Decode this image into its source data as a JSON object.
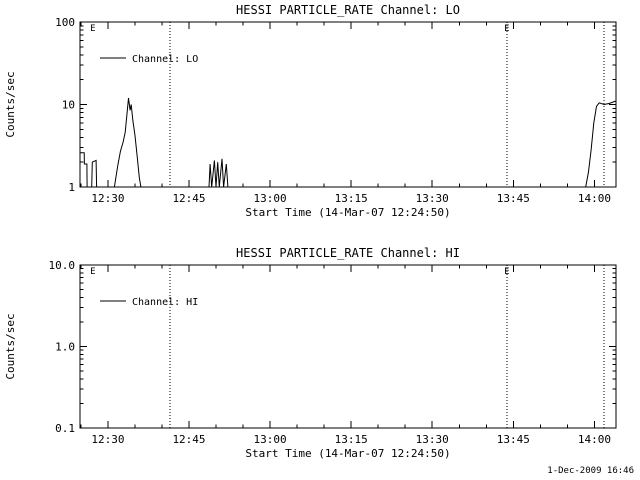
{
  "page": {
    "background": "#ffffff",
    "foreground": "#000000",
    "timestamp": "1-Dec-2009 16:46"
  },
  "chart_data": [
    {
      "type": "line",
      "title": "HESSI PARTICLE_RATE Channel: LO",
      "xlabel": "Start Time (14-Mar-07 12:24:50)",
      "ylabel": "Counts/sec",
      "yscale": "log",
      "ylim": [
        1,
        100
      ],
      "ytick_values": [
        1,
        10,
        100
      ],
      "ytick_labels": [
        "1",
        "10",
        "100"
      ],
      "xlim_minutes": [
        24.83,
        124.0
      ],
      "xtick_minutes": [
        30,
        45,
        60,
        75,
        90,
        105,
        120
      ],
      "xtick_labels": [
        "12:30",
        "12:45",
        "13:00",
        "13:15",
        "13:30",
        "13:45",
        "14:00"
      ],
      "legend": "Channel: LO",
      "legend_position": "upper-left",
      "grid": false,
      "flag_lines_minutes": [
        41.5,
        103.8,
        121.8
      ],
      "flag_labels": [
        {
          "t": 27.2,
          "text": "E"
        },
        {
          "t": 103.8,
          "text": "E"
        }
      ],
      "series": [
        {
          "name": "Channel: LO",
          "points": [
            [
              24.9,
              2.6
            ],
            [
              25.6,
              2.6
            ],
            [
              25.65,
              1.9
            ],
            [
              26.1,
              1.9
            ],
            [
              26.15,
              1.0
            ],
            [
              27.0,
              1.0
            ],
            [
              27.1,
              2.0
            ],
            [
              27.8,
              2.1
            ],
            [
              27.9,
              1.0
            ],
            [
              31.2,
              1.0
            ],
            [
              31.8,
              1.8
            ],
            [
              32.3,
              2.7
            ],
            [
              32.8,
              3.5
            ],
            [
              33.2,
              4.6
            ],
            [
              33.5,
              7.5
            ],
            [
              33.8,
              12.0
            ],
            [
              34.1,
              8.5
            ],
            [
              34.3,
              10.0
            ],
            [
              34.6,
              6.5
            ],
            [
              35.0,
              4.2
            ],
            [
              35.4,
              2.4
            ],
            [
              35.8,
              1.3
            ],
            [
              36.1,
              1.0
            ],
            [
              48.7,
              1.0
            ],
            [
              48.9,
              1.9
            ],
            [
              49.2,
              1.0
            ],
            [
              49.7,
              2.1
            ],
            [
              50.0,
              1.0
            ],
            [
              50.3,
              2.0
            ],
            [
              50.6,
              1.0
            ],
            [
              51.1,
              2.2
            ],
            [
              51.4,
              1.0
            ],
            [
              51.9,
              1.9
            ],
            [
              52.2,
              1.0
            ],
            [
              118.4,
              1.0
            ],
            [
              118.9,
              1.5
            ],
            [
              119.4,
              2.8
            ],
            [
              119.9,
              6.0
            ],
            [
              120.4,
              9.5
            ],
            [
              120.9,
              10.5
            ],
            [
              121.8,
              10.0
            ],
            [
              122.8,
              10.3
            ],
            [
              123.9,
              11.0
            ]
          ]
        }
      ]
    },
    {
      "type": "line",
      "title": "HESSI PARTICLE_RATE Channel: HI",
      "xlabel": "Start Time (14-Mar-07 12:24:50)",
      "ylabel": "Counts/sec",
      "yscale": "log",
      "ylim": [
        0.1,
        10.0
      ],
      "ytick_values": [
        0.1,
        1.0,
        10.0
      ],
      "ytick_labels": [
        "0.1",
        "1.0",
        "10.0"
      ],
      "xlim_minutes": [
        24.83,
        124.0
      ],
      "xtick_minutes": [
        30,
        45,
        60,
        75,
        90,
        105,
        120
      ],
      "xtick_labels": [
        "12:30",
        "12:45",
        "13:00",
        "13:15",
        "13:30",
        "13:45",
        "14:00"
      ],
      "legend": "Channel: HI",
      "legend_position": "upper-left",
      "grid": false,
      "flag_lines_minutes": [
        41.5,
        103.8,
        121.8
      ],
      "flag_labels": [
        {
          "t": 27.2,
          "text": "E"
        },
        {
          "t": 103.8,
          "text": "E"
        }
      ],
      "series": [
        {
          "name": "Channel: HI",
          "points": []
        }
      ]
    }
  ]
}
